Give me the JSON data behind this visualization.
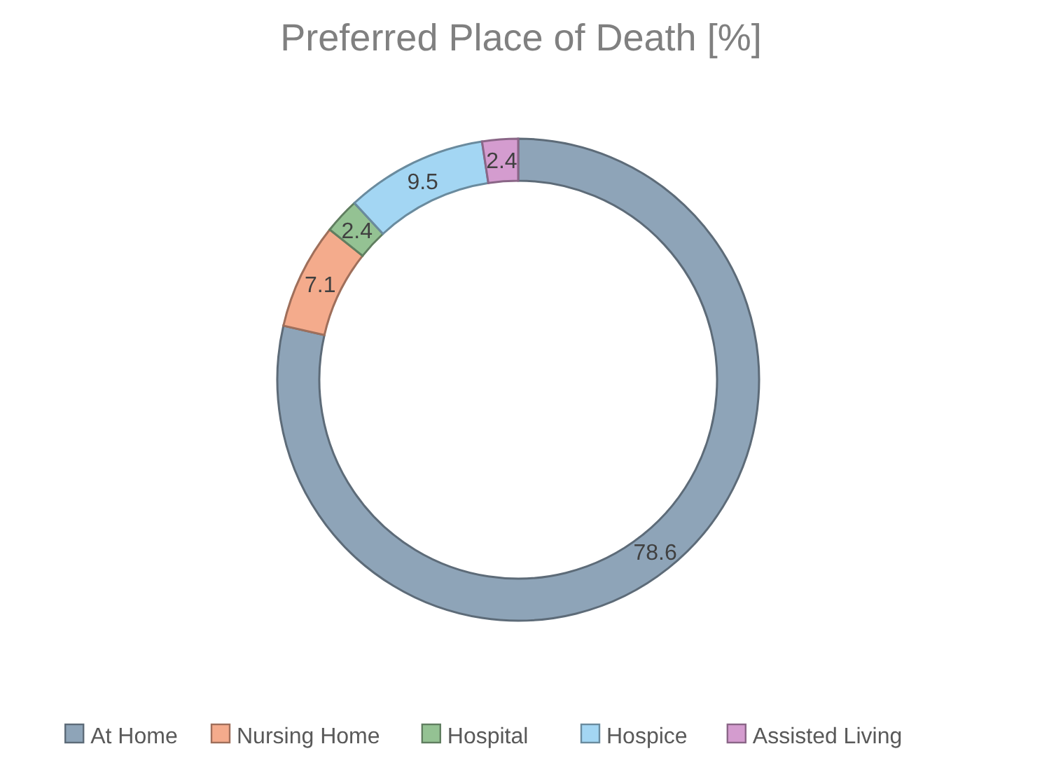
{
  "chart_data": {
    "type": "donut",
    "title": "Preferred Place of Death [%]",
    "categories": [
      "At Home",
      "Nursing Home",
      "Hospital",
      "Hospice",
      "Assisted Living"
    ],
    "values": [
      78.6,
      7.1,
      2.4,
      9.5,
      2.4
    ],
    "colors": [
      "#8ea4b8",
      "#f4ab8c",
      "#94c293",
      "#a3d6f3",
      "#d49ccf"
    ],
    "data_labels": true,
    "legend": "bottom"
  }
}
